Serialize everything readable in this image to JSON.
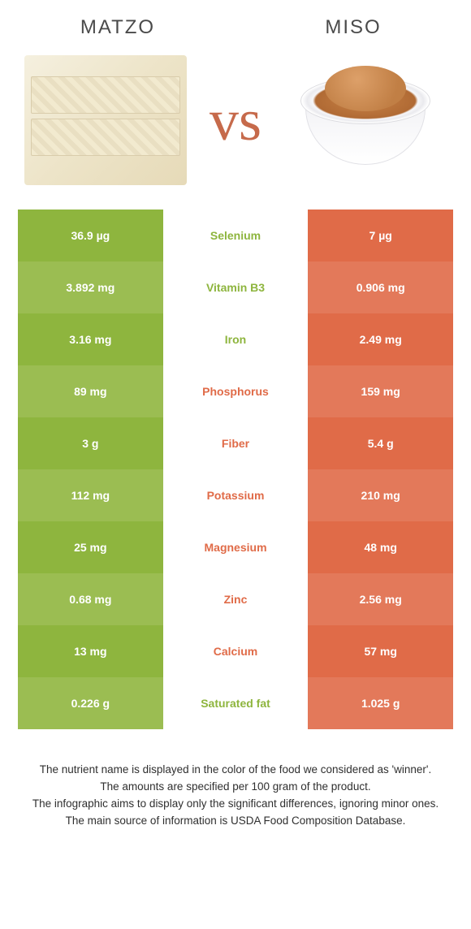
{
  "colors": {
    "green_main": "#8eb53e",
    "green_alt": "#9bbd52",
    "orange_main": "#e06b48",
    "orange_alt": "#e3795a",
    "label_green": "#8eb53e",
    "label_orange": "#e06b48",
    "title_text": "#4a4a4a",
    "vs_text": "#c66a4b"
  },
  "header": {
    "food_a": "Matzo",
    "food_b": "Miso",
    "vs": "vs"
  },
  "rows": [
    {
      "nutrient": "Selenium",
      "a": "36.9 µg",
      "b": "7 µg",
      "winner": "a"
    },
    {
      "nutrient": "Vitamin B3",
      "a": "3.892 mg",
      "b": "0.906 mg",
      "winner": "a"
    },
    {
      "nutrient": "Iron",
      "a": "3.16 mg",
      "b": "2.49 mg",
      "winner": "a"
    },
    {
      "nutrient": "Phosphorus",
      "a": "89 mg",
      "b": "159 mg",
      "winner": "b"
    },
    {
      "nutrient": "Fiber",
      "a": "3 g",
      "b": "5.4 g",
      "winner": "b"
    },
    {
      "nutrient": "Potassium",
      "a": "112 mg",
      "b": "210 mg",
      "winner": "b"
    },
    {
      "nutrient": "Magnesium",
      "a": "25 mg",
      "b": "48 mg",
      "winner": "b"
    },
    {
      "nutrient": "Zinc",
      "a": "0.68 mg",
      "b": "2.56 mg",
      "winner": "b"
    },
    {
      "nutrient": "Calcium",
      "a": "13 mg",
      "b": "57 mg",
      "winner": "b"
    },
    {
      "nutrient": "Saturated fat",
      "a": "0.226 g",
      "b": "1.025 g",
      "winner": "a"
    }
  ],
  "footer": {
    "line1": "The nutrient name is displayed in the color of the food we considered as 'winner'.",
    "line2": "The amounts are specified per 100 gram of the product.",
    "line3": "The infographic aims to display only the significant differences, ignoring minor ones.",
    "line4": "The main source of information is USDA Food Composition Database."
  }
}
